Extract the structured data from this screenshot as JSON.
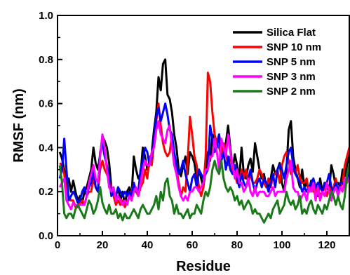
{
  "chart_data": {
    "type": "line",
    "title": "",
    "xlabel": "Residue",
    "ylabel": "RMSF (nm)",
    "xlim": [
      0,
      130
    ],
    "ylim": [
      0.0,
      1.0
    ],
    "xticks": [
      0,
      20,
      40,
      60,
      80,
      100,
      120
    ],
    "xtick_labels": [
      "0",
      "20",
      "40",
      "60",
      "80",
      "100",
      "120"
    ],
    "yticks": [
      0.0,
      0.2,
      0.4,
      0.6,
      0.8,
      1.0
    ],
    "ytick_labels": [
      "0.0",
      "0.2",
      "0.4",
      "0.6",
      "0.8",
      "1.0"
    ],
    "grid": false,
    "legend_position": "top-right",
    "x": [
      1,
      2,
      3,
      4,
      5,
      6,
      7,
      8,
      9,
      10,
      11,
      12,
      13,
      14,
      15,
      16,
      17,
      18,
      19,
      20,
      21,
      22,
      23,
      24,
      25,
      26,
      27,
      28,
      29,
      30,
      31,
      32,
      33,
      34,
      35,
      36,
      37,
      38,
      39,
      40,
      41,
      42,
      43,
      44,
      45,
      46,
      47,
      48,
      49,
      50,
      51,
      52,
      53,
      54,
      55,
      56,
      57,
      58,
      59,
      60,
      61,
      62,
      63,
      64,
      65,
      66,
      67,
      68,
      69,
      70,
      71,
      72,
      73,
      74,
      75,
      76,
      77,
      78,
      79,
      80,
      81,
      82,
      83,
      84,
      85,
      86,
      87,
      88,
      89,
      90,
      91,
      92,
      93,
      94,
      95,
      96,
      97,
      98,
      99,
      100,
      101,
      102,
      103,
      104,
      105,
      106,
      107,
      108,
      109,
      110,
      111,
      112,
      113,
      114,
      115,
      116,
      117,
      118,
      119,
      120,
      121,
      122,
      123,
      124,
      125,
      126,
      127,
      128,
      129,
      130
    ],
    "series": [
      {
        "name": "Silica Flat",
        "color": "#000000",
        "values": [
          0.38,
          0.35,
          0.3,
          0.24,
          0.26,
          0.2,
          0.25,
          0.2,
          0.16,
          0.18,
          0.15,
          0.2,
          0.22,
          0.26,
          0.3,
          0.4,
          0.33,
          0.3,
          0.37,
          0.45,
          0.43,
          0.4,
          0.33,
          0.22,
          0.2,
          0.18,
          0.22,
          0.16,
          0.2,
          0.14,
          0.2,
          0.22,
          0.18,
          0.36,
          0.3,
          0.26,
          0.28,
          0.4,
          0.36,
          0.3,
          0.32,
          0.38,
          0.48,
          0.56,
          0.72,
          0.66,
          0.78,
          0.8,
          0.64,
          0.62,
          0.56,
          0.46,
          0.4,
          0.3,
          0.27,
          0.32,
          0.36,
          0.28,
          0.38,
          0.36,
          0.33,
          0.26,
          0.3,
          0.26,
          0.22,
          0.3,
          0.38,
          0.34,
          0.46,
          0.44,
          0.42,
          0.46,
          0.38,
          0.36,
          0.42,
          0.5,
          0.4,
          0.3,
          0.37,
          0.32,
          0.26,
          0.4,
          0.28,
          0.26,
          0.32,
          0.35,
          0.29,
          0.42,
          0.36,
          0.3,
          0.26,
          0.28,
          0.22,
          0.22,
          0.26,
          0.32,
          0.28,
          0.3,
          0.33,
          0.24,
          0.2,
          0.3,
          0.48,
          0.52,
          0.36,
          0.3,
          0.26,
          0.22,
          0.3,
          0.22,
          0.24,
          0.2,
          0.25,
          0.2,
          0.22,
          0.18,
          0.26,
          0.2,
          0.24,
          0.22,
          0.2,
          0.32,
          0.28,
          0.22,
          0.24,
          0.22,
          0.3,
          0.27,
          0.32,
          0.38
        ]
      },
      {
        "name": "SNP 10 nm",
        "color": "#ff0000",
        "values": [
          0.33,
          0.32,
          0.28,
          0.2,
          0.18,
          0.16,
          0.16,
          0.13,
          0.13,
          0.15,
          0.16,
          0.14,
          0.18,
          0.2,
          0.2,
          0.26,
          0.22,
          0.2,
          0.3,
          0.34,
          0.3,
          0.28,
          0.25,
          0.22,
          0.18,
          0.14,
          0.16,
          0.14,
          0.16,
          0.13,
          0.15,
          0.18,
          0.2,
          0.24,
          0.2,
          0.18,
          0.22,
          0.24,
          0.3,
          0.26,
          0.36,
          0.32,
          0.42,
          0.52,
          0.6,
          0.5,
          0.42,
          0.38,
          0.36,
          0.38,
          0.46,
          0.32,
          0.3,
          0.24,
          0.18,
          0.22,
          0.2,
          0.34,
          0.54,
          0.46,
          0.36,
          0.32,
          0.22,
          0.18,
          0.22,
          0.36,
          0.74,
          0.7,
          0.56,
          0.46,
          0.42,
          0.4,
          0.36,
          0.42,
          0.38,
          0.32,
          0.36,
          0.3,
          0.28,
          0.24,
          0.24,
          0.3,
          0.26,
          0.3,
          0.24,
          0.28,
          0.24,
          0.24,
          0.26,
          0.3,
          0.28,
          0.24,
          0.22,
          0.26,
          0.22,
          0.27,
          0.28,
          0.3,
          0.24,
          0.32,
          0.36,
          0.38,
          0.34,
          0.28,
          0.3,
          0.28,
          0.32,
          0.26,
          0.24,
          0.24,
          0.26,
          0.2,
          0.22,
          0.2,
          0.2,
          0.22,
          0.18,
          0.2,
          0.22,
          0.18,
          0.22,
          0.2,
          0.22,
          0.26,
          0.2,
          0.22,
          0.24,
          0.32,
          0.36,
          0.4
        ]
      },
      {
        "name": "SNP 5 nm",
        "color": "#0000ff",
        "values": [
          0.26,
          0.3,
          0.44,
          0.3,
          0.16,
          0.18,
          0.2,
          0.18,
          0.15,
          0.16,
          0.2,
          0.22,
          0.18,
          0.22,
          0.24,
          0.3,
          0.22,
          0.2,
          0.38,
          0.42,
          0.36,
          0.32,
          0.26,
          0.18,
          0.2,
          0.18,
          0.22,
          0.2,
          0.18,
          0.2,
          0.18,
          0.2,
          0.18,
          0.24,
          0.2,
          0.2,
          0.3,
          0.34,
          0.4,
          0.38,
          0.32,
          0.36,
          0.44,
          0.54,
          0.58,
          0.52,
          0.56,
          0.6,
          0.55,
          0.48,
          0.46,
          0.38,
          0.32,
          0.28,
          0.3,
          0.34,
          0.28,
          0.24,
          0.2,
          0.26,
          0.28,
          0.22,
          0.3,
          0.28,
          0.26,
          0.28,
          0.3,
          0.5,
          0.44,
          0.38,
          0.4,
          0.46,
          0.34,
          0.38,
          0.3,
          0.36,
          0.3,
          0.28,
          0.32,
          0.26,
          0.22,
          0.28,
          0.24,
          0.22,
          0.26,
          0.3,
          0.24,
          0.2,
          0.24,
          0.26,
          0.22,
          0.26,
          0.24,
          0.2,
          0.24,
          0.28,
          0.22,
          0.3,
          0.32,
          0.3,
          0.26,
          0.32,
          0.38,
          0.4,
          0.32,
          0.28,
          0.26,
          0.24,
          0.2,
          0.22,
          0.2,
          0.22,
          0.24,
          0.26,
          0.22,
          0.24,
          0.22,
          0.2,
          0.24,
          0.24,
          0.28,
          0.22,
          0.2,
          0.24,
          0.2,
          0.24,
          0.24,
          0.22,
          0.26,
          0.3
        ]
      },
      {
        "name": "SNP 3 nm",
        "color": "#ff00ff",
        "values": [
          0.22,
          0.24,
          0.26,
          0.16,
          0.14,
          0.12,
          0.15,
          0.14,
          0.13,
          0.14,
          0.14,
          0.14,
          0.18,
          0.24,
          0.28,
          0.32,
          0.26,
          0.24,
          0.36,
          0.46,
          0.4,
          0.3,
          0.22,
          0.2,
          0.22,
          0.16,
          0.18,
          0.16,
          0.14,
          0.16,
          0.14,
          0.18,
          0.16,
          0.2,
          0.22,
          0.18,
          0.24,
          0.3,
          0.34,
          0.32,
          0.32,
          0.38,
          0.4,
          0.48,
          0.52,
          0.46,
          0.44,
          0.42,
          0.48,
          0.5,
          0.4,
          0.32,
          0.28,
          0.22,
          0.18,
          0.16,
          0.18,
          0.16,
          0.2,
          0.2,
          0.22,
          0.22,
          0.2,
          0.22,
          0.24,
          0.3,
          0.3,
          0.36,
          0.36,
          0.44,
          0.38,
          0.3,
          0.44,
          0.4,
          0.36,
          0.46,
          0.38,
          0.32,
          0.26,
          0.3,
          0.24,
          0.24,
          0.2,
          0.22,
          0.26,
          0.2,
          0.18,
          0.22,
          0.18,
          0.2,
          0.2,
          0.2,
          0.18,
          0.18,
          0.2,
          0.22,
          0.18,
          0.2,
          0.2,
          0.2,
          0.2,
          0.26,
          0.3,
          0.34,
          0.22,
          0.2,
          0.2,
          0.16,
          0.18,
          0.2,
          0.16,
          0.22,
          0.2,
          0.24,
          0.16,
          0.22,
          0.16,
          0.2,
          0.18,
          0.24,
          0.2,
          0.16,
          0.2,
          0.22,
          0.18,
          0.22,
          0.2,
          0.26,
          0.24,
          0.26
        ]
      },
      {
        "name": "SNP 2 nm",
        "color": "#1a7a1a",
        "values": [
          0.32,
          0.24,
          0.1,
          0.08,
          0.1,
          0.1,
          0.08,
          0.12,
          0.14,
          0.12,
          0.1,
          0.08,
          0.12,
          0.16,
          0.14,
          0.1,
          0.12,
          0.16,
          0.22,
          0.15,
          0.12,
          0.1,
          0.14,
          0.1,
          0.1,
          0.12,
          0.08,
          0.1,
          0.07,
          0.1,
          0.08,
          0.08,
          0.1,
          0.12,
          0.1,
          0.08,
          0.12,
          0.14,
          0.12,
          0.1,
          0.1,
          0.12,
          0.14,
          0.18,
          0.12,
          0.2,
          0.16,
          0.24,
          0.26,
          0.18,
          0.16,
          0.1,
          0.14,
          0.1,
          0.1,
          0.08,
          0.1,
          0.12,
          0.08,
          0.1,
          0.1,
          0.14,
          0.12,
          0.1,
          0.16,
          0.2,
          0.18,
          0.22,
          0.3,
          0.34,
          0.3,
          0.28,
          0.34,
          0.26,
          0.22,
          0.2,
          0.22,
          0.2,
          0.16,
          0.18,
          0.14,
          0.16,
          0.12,
          0.14,
          0.16,
          0.14,
          0.1,
          0.12,
          0.1,
          0.1,
          0.08,
          0.06,
          0.08,
          0.1,
          0.08,
          0.12,
          0.14,
          0.16,
          0.1,
          0.12,
          0.14,
          0.2,
          0.16,
          0.14,
          0.16,
          0.12,
          0.14,
          0.18,
          0.1,
          0.12,
          0.1,
          0.14,
          0.16,
          0.12,
          0.1,
          0.14,
          0.12,
          0.1,
          0.14,
          0.12,
          0.16,
          0.2,
          0.18,
          0.14,
          0.18,
          0.14,
          0.12,
          0.18,
          0.28,
          0.32
        ]
      }
    ]
  }
}
